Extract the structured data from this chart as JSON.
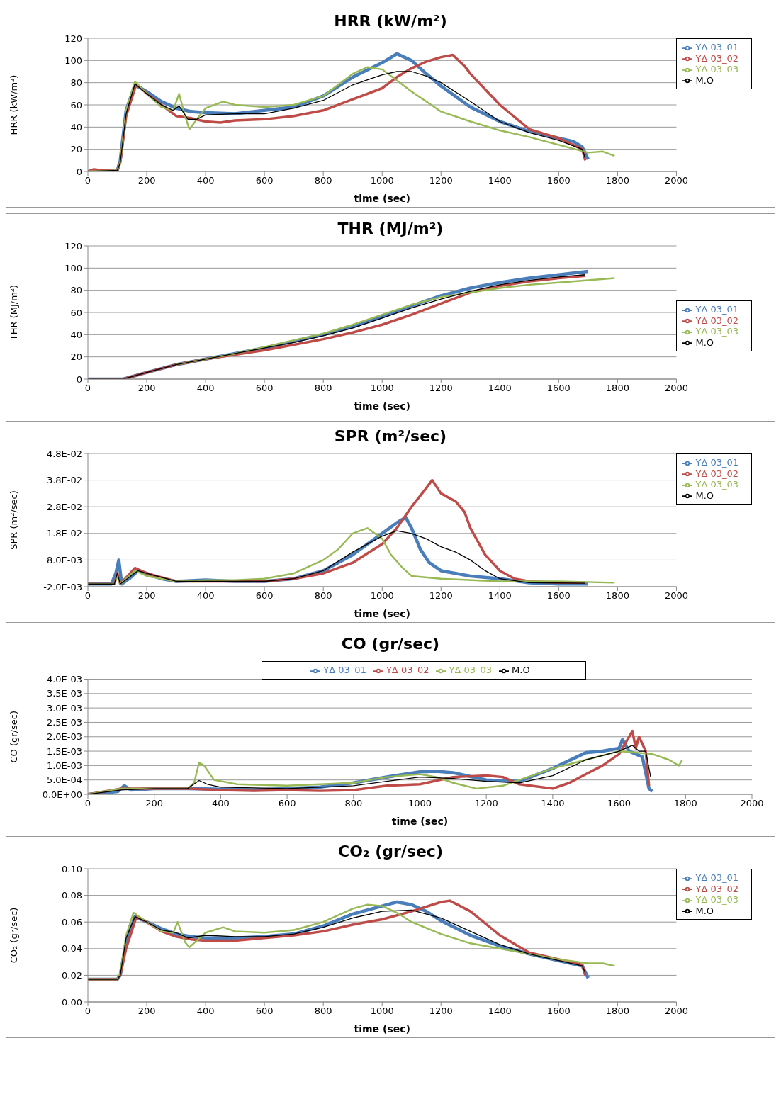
{
  "chart_data": [
    {
      "type": "line",
      "title": "HRR (kW/m²)",
      "xlabel": "time (sec)",
      "ylabel": "HRR (kW/m²)",
      "xlim": [
        0,
        2000
      ],
      "xticks": [
        0,
        200,
        400,
        600,
        800,
        1000,
        1200,
        1400,
        1600,
        1800,
        2000
      ],
      "ylim": [
        0,
        120
      ],
      "yticks": [
        0,
        20,
        40,
        60,
        80,
        100,
        120
      ],
      "grid": "y",
      "legend": "top right",
      "series": [
        {
          "name": "YΔ 03_01",
          "color": "#4a7ebb",
          "x": [
            0,
            50,
            100,
            110,
            130,
            160,
            200,
            250,
            300,
            350,
            400,
            500,
            600,
            700,
            800,
            900,
            1000,
            1050,
            1100,
            1150,
            1200,
            1300,
            1400,
            1500,
            1600,
            1650,
            1680,
            1700
          ],
          "values": [
            0,
            1,
            1,
            10,
            55,
            78,
            72,
            63,
            57,
            54,
            53,
            52,
            55,
            58,
            68,
            85,
            98,
            106,
            100,
            88,
            77,
            58,
            45,
            36,
            30,
            27,
            22,
            11
          ]
        },
        {
          "name": "YΔ 03_02",
          "color": "#be4b48",
          "x": [
            0,
            20,
            50,
            100,
            110,
            130,
            165,
            200,
            250,
            300,
            350,
            400,
            450,
            500,
            600,
            700,
            800,
            900,
            1000,
            1050,
            1100,
            1150,
            1200,
            1240,
            1280,
            1300,
            1400,
            1500,
            1600,
            1680,
            1690
          ],
          "values": [
            0,
            2,
            1,
            1,
            8,
            50,
            79,
            70,
            60,
            50,
            48,
            45,
            44,
            46,
            47,
            50,
            55,
            65,
            75,
            85,
            93,
            99,
            103,
            105,
            95,
            88,
            60,
            38,
            30,
            20,
            10
          ]
        },
        {
          "name": "YΔ 03_03",
          "color": "#98b954",
          "x": [
            0,
            100,
            110,
            130,
            160,
            200,
            250,
            290,
            310,
            330,
            345,
            370,
            400,
            460,
            500,
            600,
            700,
            800,
            850,
            900,
            950,
            1000,
            1050,
            1100,
            1150,
            1200,
            1300,
            1400,
            1500,
            1600,
            1700,
            1750,
            1790
          ],
          "values": [
            0,
            1,
            8,
            55,
            81,
            70,
            58,
            55,
            70,
            50,
            38,
            47,
            57,
            63,
            60,
            58,
            60,
            68,
            78,
            88,
            94,
            92,
            82,
            72,
            63,
            54,
            45,
            37,
            31,
            24,
            17,
            18,
            14
          ]
        },
        {
          "name": "M.O",
          "color": "#000000",
          "x": [
            0,
            100,
            110,
            130,
            160,
            200,
            250,
            290,
            310,
            340,
            370,
            400,
            500,
            600,
            700,
            800,
            900,
            1000,
            1050,
            1100,
            1150,
            1200,
            1300,
            1400,
            1500,
            1600,
            1680,
            1690
          ],
          "values": [
            0,
            1,
            8,
            52,
            79,
            70,
            60,
            55,
            59,
            47,
            47,
            51,
            52,
            52,
            57,
            64,
            78,
            87,
            90,
            90,
            86,
            80,
            63,
            45,
            35,
            28,
            20,
            12
          ]
        }
      ]
    },
    {
      "type": "line",
      "title": "THR (MJ/m²)",
      "xlabel": "time (sec)",
      "ylabel": "THR (MJ/m²)",
      "xlim": [
        0,
        2000
      ],
      "xticks": [
        0,
        200,
        400,
        600,
        800,
        1000,
        1200,
        1400,
        1600,
        1800,
        2000
      ],
      "ylim": [
        0,
        120
      ],
      "yticks": [
        0,
        20,
        40,
        60,
        80,
        100,
        120
      ],
      "grid": "y",
      "legend": "right",
      "series": [
        {
          "name": "YΔ 03_01",
          "color": "#4a7ebb",
          "x": [
            0,
            120,
            200,
            300,
            400,
            500,
            600,
            700,
            800,
            900,
            1000,
            1100,
            1200,
            1300,
            1400,
            1500,
            1600,
            1700
          ],
          "values": [
            0,
            0,
            6,
            13,
            18,
            23,
            28,
            34,
            40,
            47,
            56,
            66,
            75,
            82,
            87,
            91,
            94,
            97
          ]
        },
        {
          "name": "YΔ 03_02",
          "color": "#be4b48",
          "x": [
            0,
            120,
            200,
            300,
            400,
            500,
            600,
            700,
            800,
            900,
            1000,
            1100,
            1200,
            1300,
            1400,
            1500,
            1600,
            1690
          ],
          "values": [
            0,
            0,
            6,
            13,
            18,
            22,
            26,
            31,
            36,
            42,
            49,
            58,
            68,
            78,
            84,
            88,
            91,
            93
          ]
        },
        {
          "name": "YΔ 03_03",
          "color": "#98b954",
          "x": [
            300,
            400,
            500,
            600,
            700,
            800,
            900,
            1000,
            1100,
            1200,
            1300,
            1400,
            1500,
            1600,
            1700,
            1790
          ],
          "values": [
            13,
            18,
            23,
            29,
            35,
            41,
            49,
            58,
            67,
            74,
            78,
            82,
            85,
            87,
            89,
            91
          ]
        },
        {
          "name": "M.O",
          "color": "#000000",
          "x": [
            0,
            120,
            200,
            300,
            400,
            500,
            600,
            700,
            800,
            900,
            1000,
            1100,
            1200,
            1300,
            1400,
            1500,
            1600,
            1690
          ],
          "values": [
            0,
            0,
            6,
            13,
            18,
            23,
            28,
            33,
            39,
            46,
            55,
            64,
            72,
            79,
            85,
            89,
            92,
            94
          ]
        }
      ]
    },
    {
      "type": "line",
      "title": "SPR (m²/sec)",
      "xlabel": "time (sec)",
      "ylabel": "SPR (m²/sec)",
      "xlim": [
        0,
        2000
      ],
      "xticks": [
        0,
        200,
        400,
        600,
        800,
        1000,
        1200,
        1400,
        1600,
        1800,
        2000
      ],
      "ylim": [
        -0.002,
        0.048
      ],
      "yticks": [
        {
          "value": -0.002,
          "label": "-2.0E-03"
        },
        {
          "value": 0.008,
          "label": "8.0E-03"
        },
        {
          "value": 0.018,
          "label": "1.8E-02"
        },
        {
          "value": 0.028,
          "label": "2.8E-02"
        },
        {
          "value": 0.038,
          "label": "3.8E-02"
        },
        {
          "value": 0.048,
          "label": "4.8E-02"
        }
      ],
      "grid": "y",
      "legend": "top right",
      "series": [
        {
          "name": "YΔ 03_01",
          "color": "#4a7ebb",
          "x": [
            0,
            80,
            95,
            105,
            115,
            140,
            170,
            200,
            250,
            300,
            400,
            500,
            600,
            700,
            800,
            900,
            950,
            1000,
            1050,
            1080,
            1100,
            1130,
            1160,
            1200,
            1300,
            1400,
            1500,
            1600,
            1700
          ],
          "values": [
            -0.001,
            -0.001,
            0.003,
            0.008,
            -0.001,
            0.001,
            0.004,
            0.003,
            0.001,
            0,
            0.0005,
            0,
            0,
            0.001,
            0.004,
            0.01,
            0.014,
            0.018,
            0.022,
            0.024,
            0.02,
            0.012,
            0.007,
            0.004,
            0.002,
            0.001,
            -0.0005,
            -0.001,
            -0.001
          ]
        },
        {
          "name": "YΔ 03_02",
          "color": "#be4b48",
          "x": [
            0,
            90,
            100,
            110,
            160,
            200,
            300,
            400,
            600,
            700,
            800,
            900,
            1000,
            1050,
            1100,
            1150,
            1170,
            1200,
            1250,
            1280,
            1300,
            1350,
            1400,
            1450,
            1500,
            1600,
            1690
          ],
          "values": [
            -0.001,
            -0.001,
            0.003,
            -0.001,
            0.005,
            0.003,
            0,
            0,
            0,
            0.001,
            0.003,
            0.007,
            0.014,
            0.02,
            0.028,
            0.035,
            0.038,
            0.033,
            0.03,
            0.026,
            0.02,
            0.01,
            0.004,
            0.001,
            0,
            -0.0005,
            -0.0005
          ]
        },
        {
          "name": "YΔ 03_03",
          "color": "#98b954",
          "x": [
            0,
            90,
            100,
            110,
            160,
            200,
            300,
            400,
            500,
            600,
            700,
            800,
            850,
            900,
            950,
            1000,
            1030,
            1070,
            1100,
            1200,
            1400,
            1600,
            1790
          ],
          "values": [
            -0.001,
            -0.001,
            0.002,
            -0.001,
            0.004,
            0.002,
            0,
            0.0005,
            0.0005,
            0.001,
            0.003,
            0.008,
            0.012,
            0.018,
            0.02,
            0.016,
            0.01,
            0.005,
            0.002,
            0.001,
            0,
            0,
            -0.0005
          ]
        },
        {
          "name": "M.O",
          "color": "#000000",
          "x": [
            0,
            90,
            100,
            110,
            170,
            200,
            300,
            400,
            500,
            600,
            700,
            800,
            900,
            1000,
            1050,
            1100,
            1150,
            1200,
            1250,
            1300,
            1350,
            1400,
            1500,
            1690
          ],
          "values": [
            -0.001,
            -0.001,
            0.003,
            -0.001,
            0.004,
            0.003,
            0,
            0,
            0,
            0,
            0.001,
            0.004,
            0.011,
            0.017,
            0.019,
            0.018,
            0.016,
            0.013,
            0.011,
            0.008,
            0.004,
            0.001,
            -0.0005,
            -0.0007
          ]
        }
      ]
    },
    {
      "type": "line",
      "title": "CO (gr/sec)",
      "xlabel": "time (sec)",
      "ylabel": "CO (gr/sec)",
      "xlim": [
        0,
        2000
      ],
      "xticks": [
        0,
        200,
        400,
        600,
        800,
        1000,
        1200,
        1400,
        1600,
        1800,
        2000
      ],
      "ylim": [
        0,
        0.004
      ],
      "yticks": [
        {
          "value": 0,
          "label": "0.0E+00"
        },
        {
          "value": 0.0005,
          "label": "5.0E-04"
        },
        {
          "value": 0.001,
          "label": "1.0E-03"
        },
        {
          "value": 0.0015,
          "label": "1.5E-03"
        },
        {
          "value": 0.002,
          "label": "2.0E-03"
        },
        {
          "value": 0.0025,
          "label": "2.5E-03"
        },
        {
          "value": 0.003,
          "label": "3.0E-03"
        },
        {
          "value": 0.0035,
          "label": "3.5E-03"
        },
        {
          "value": 0.004,
          "label": "4.0E-03"
        }
      ],
      "grid": "y",
      "legend": "top",
      "series": [
        {
          "name": "YΔ 03_01",
          "color": "#4a7ebb",
          "x": [
            0,
            90,
            110,
            130,
            200,
            300,
            400,
            500,
            600,
            700,
            800,
            900,
            1000,
            1050,
            1100,
            1200,
            1300,
            1400,
            1500,
            1550,
            1600,
            1610,
            1630,
            1670,
            1690,
            1700
          ],
          "values": [
            0,
            0.0001,
            0.0003,
            0.00015,
            0.0002,
            0.0002,
            0.00018,
            0.00015,
            0.0002,
            0.00025,
            0.0004,
            0.0006,
            0.00078,
            0.0008,
            0.00075,
            0.0005,
            0.00045,
            0.0009,
            0.00145,
            0.0015,
            0.0016,
            0.0019,
            0.0015,
            0.0013,
            0.0002,
            0.0001
          ]
        },
        {
          "name": "YΔ 03_02",
          "color": "#be4b48",
          "x": [
            0,
            100,
            200,
            300,
            400,
            500,
            600,
            700,
            800,
            900,
            1000,
            1100,
            1200,
            1250,
            1300,
            1400,
            1450,
            1500,
            1550,
            1600,
            1640,
            1650,
            1660,
            1680,
            1690
          ],
          "values": [
            0,
            0.0002,
            0.0002,
            0.0002,
            0.00015,
            0.00012,
            0.00015,
            0.00012,
            0.00015,
            0.0003,
            0.00035,
            0.0006,
            0.00065,
            0.0006,
            0.00035,
            0.0002,
            0.0004,
            0.0007,
            0.001,
            0.0014,
            0.0022,
            0.0016,
            0.002,
            0.0015,
            0.0003
          ]
        },
        {
          "name": "YΔ 03_03",
          "color": "#98b954",
          "x": [
            0,
            100,
            200,
            300,
            320,
            335,
            350,
            380,
            450,
            600,
            800,
            900,
            1000,
            1050,
            1100,
            1170,
            1250,
            1300,
            1400,
            1500,
            1600,
            1700,
            1750,
            1780,
            1790
          ],
          "values": [
            0,
            0.0002,
            0.0002,
            0.0002,
            0.0004,
            0.0011,
            0.001,
            0.0005,
            0.00035,
            0.0003,
            0.0004,
            0.0006,
            0.0007,
            0.0006,
            0.0004,
            0.0002,
            0.0003,
            0.0005,
            0.0009,
            0.0012,
            0.0015,
            0.0014,
            0.0012,
            0.001,
            0.0012
          ]
        },
        {
          "name": "M.O",
          "color": "#000000",
          "x": [
            0,
            100,
            200,
            300,
            335,
            360,
            400,
            600,
            800,
            900,
            1000,
            1100,
            1200,
            1300,
            1400,
            1500,
            1600,
            1640,
            1660,
            1680,
            1695
          ],
          "values": [
            0,
            0.00015,
            0.0002,
            0.0002,
            0.00048,
            0.00035,
            0.00025,
            0.0002,
            0.0003,
            0.00045,
            0.0006,
            0.00055,
            0.00045,
            0.0004,
            0.00065,
            0.0012,
            0.0015,
            0.0017,
            0.0015,
            0.0015,
            0.0006
          ]
        }
      ]
    },
    {
      "type": "line",
      "title": "CO₂ (gr/sec)",
      "xlabel": "time (sec)",
      "ylabel": "CO₂ (gr/sec)",
      "xlim": [
        0,
        2000
      ],
      "xticks": [
        0,
        200,
        400,
        600,
        800,
        1000,
        1200,
        1400,
        1600,
        1800,
        2000
      ],
      "ylim": [
        0,
        0.1
      ],
      "yticks": [
        {
          "value": 0,
          "label": "0.00"
        },
        {
          "value": 0.02,
          "label": "0.02"
        },
        {
          "value": 0.04,
          "label": "0.04"
        },
        {
          "value": 0.06,
          "label": "0.06"
        },
        {
          "value": 0.08,
          "label": "0.08"
        },
        {
          "value": 0.1,
          "label": "0.10"
        }
      ],
      "grid": "y",
      "legend": "top right",
      "series": [
        {
          "name": "YΔ 03_01",
          "color": "#4a7ebb",
          "x": [
            0,
            100,
            110,
            130,
            160,
            200,
            250,
            300,
            350,
            400,
            500,
            600,
            700,
            800,
            900,
            1000,
            1050,
            1100,
            1150,
            1200,
            1300,
            1400,
            1500,
            1600,
            1680,
            1700
          ],
          "values": [
            0.017,
            0.017,
            0.02,
            0.045,
            0.064,
            0.06,
            0.055,
            0.051,
            0.049,
            0.048,
            0.048,
            0.049,
            0.051,
            0.057,
            0.066,
            0.072,
            0.075,
            0.073,
            0.068,
            0.061,
            0.05,
            0.042,
            0.036,
            0.031,
            0.027,
            0.018
          ]
        },
        {
          "name": "YΔ 03_02",
          "color": "#be4b48",
          "x": [
            0,
            100,
            110,
            130,
            165,
            200,
            250,
            300,
            350,
            400,
            500,
            600,
            700,
            800,
            900,
            1000,
            1100,
            1200,
            1230,
            1300,
            1400,
            1500,
            1600,
            1680,
            1690
          ],
          "values": [
            0.017,
            0.017,
            0.02,
            0.04,
            0.064,
            0.06,
            0.053,
            0.049,
            0.047,
            0.046,
            0.046,
            0.048,
            0.05,
            0.053,
            0.058,
            0.062,
            0.068,
            0.075,
            0.076,
            0.068,
            0.05,
            0.037,
            0.032,
            0.028,
            0.02
          ]
        },
        {
          "name": "YΔ 03_03",
          "color": "#98b954",
          "x": [
            0,
            100,
            110,
            130,
            155,
            200,
            250,
            290,
            305,
            330,
            345,
            400,
            460,
            500,
            600,
            700,
            800,
            900,
            950,
            1000,
            1050,
            1100,
            1200,
            1300,
            1400,
            1500,
            1600,
            1700,
            1750,
            1790
          ],
          "values": [
            0.017,
            0.017,
            0.022,
            0.05,
            0.067,
            0.06,
            0.053,
            0.052,
            0.06,
            0.045,
            0.041,
            0.052,
            0.056,
            0.053,
            0.052,
            0.054,
            0.06,
            0.07,
            0.073,
            0.072,
            0.067,
            0.06,
            0.051,
            0.044,
            0.04,
            0.036,
            0.032,
            0.029,
            0.029,
            0.027
          ]
        },
        {
          "name": "M.O",
          "color": "#000000",
          "x": [
            0,
            100,
            110,
            130,
            160,
            200,
            250,
            300,
            340,
            400,
            500,
            600,
            700,
            800,
            900,
            1000,
            1100,
            1200,
            1300,
            1400,
            1500,
            1600,
            1680,
            1690
          ],
          "values": [
            0.017,
            0.017,
            0.02,
            0.048,
            0.064,
            0.06,
            0.054,
            0.052,
            0.048,
            0.05,
            0.049,
            0.049,
            0.051,
            0.056,
            0.063,
            0.068,
            0.069,
            0.063,
            0.053,
            0.043,
            0.036,
            0.031,
            0.027,
            0.022
          ]
        }
      ]
    }
  ]
}
